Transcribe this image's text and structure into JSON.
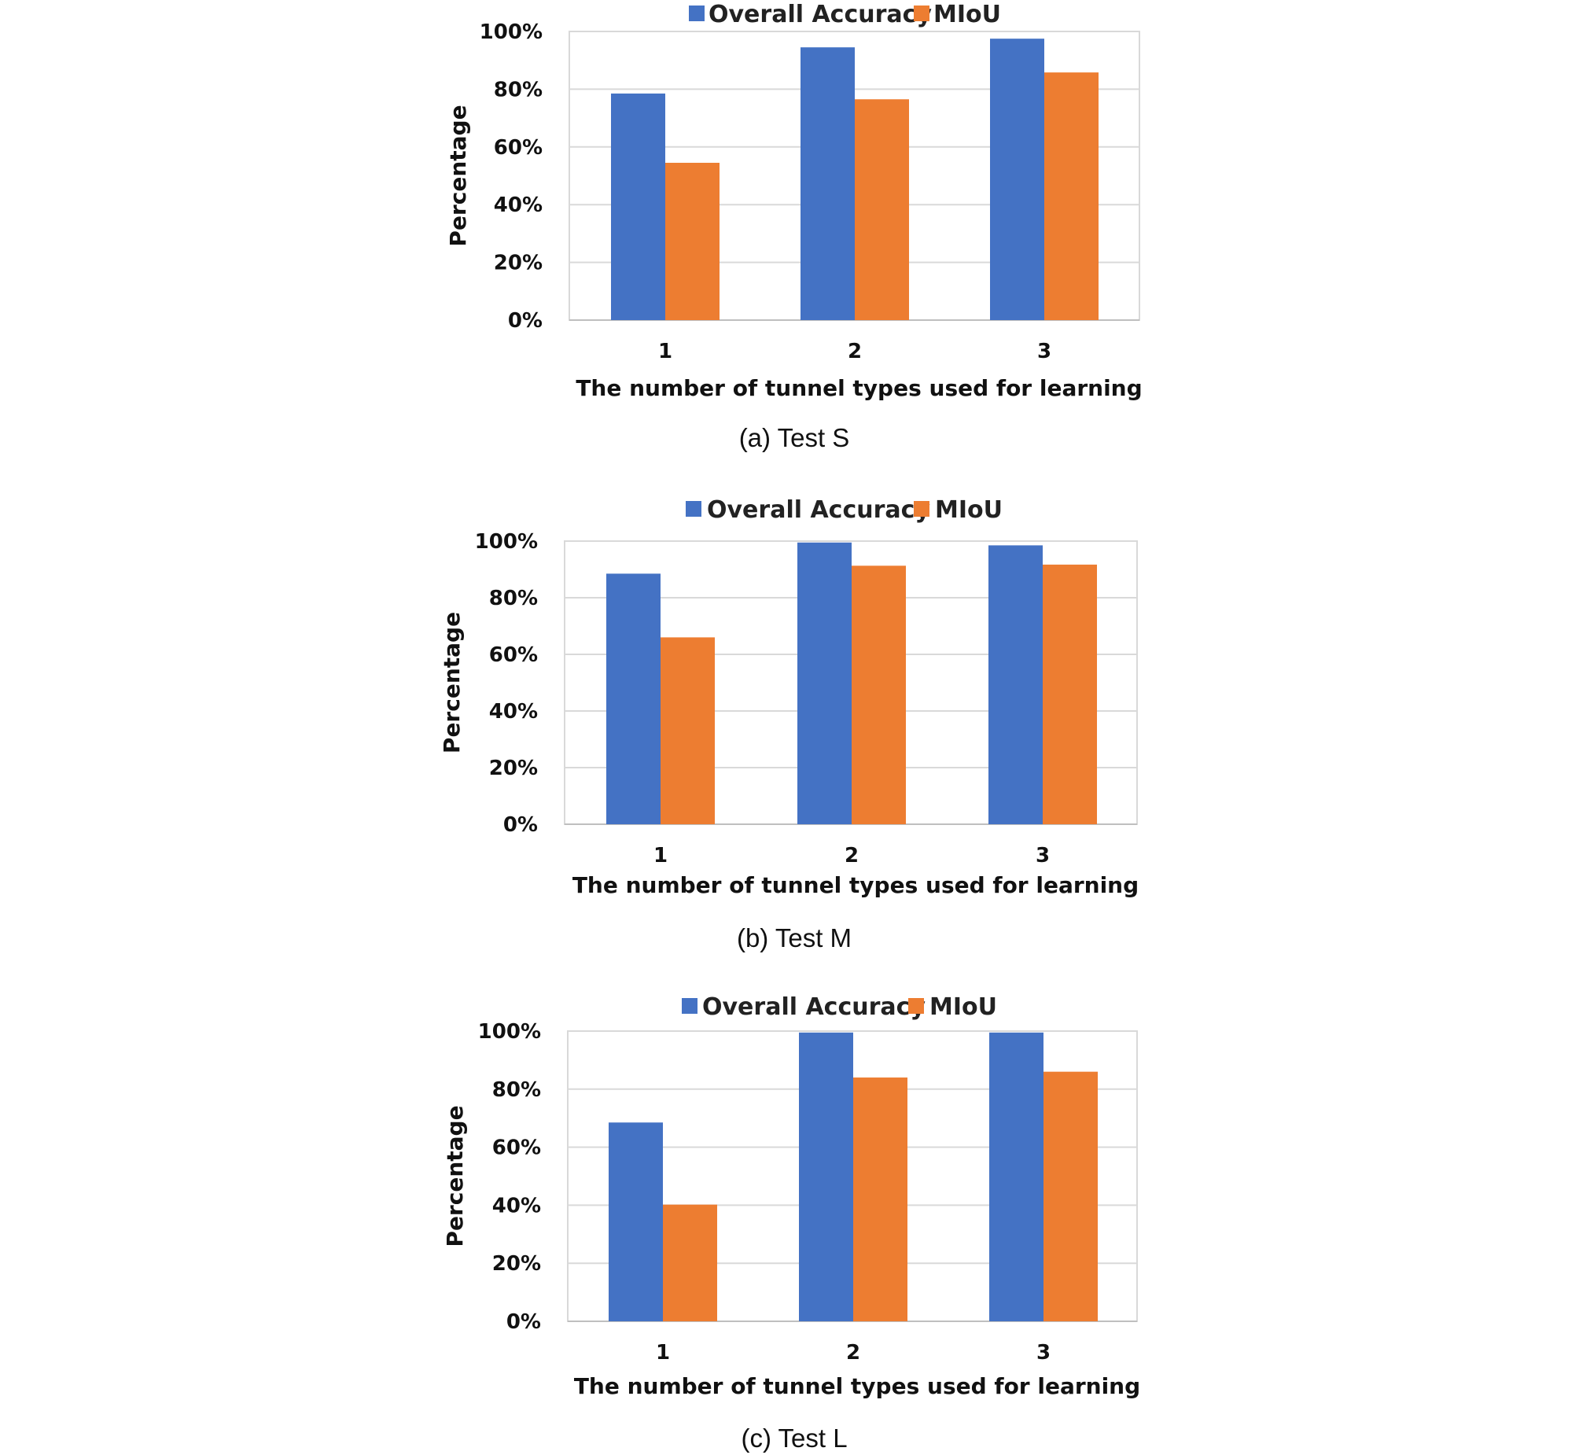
{
  "colors": {
    "overall_accuracy": "#4472C4",
    "miou": "#ED7D31"
  },
  "chart_data": [
    {
      "type": "bar",
      "caption": "(a)  Test  S",
      "categories": [
        "1",
        "2",
        "3"
      ],
      "series": [
        {
          "name": "Overall Accuracy",
          "values": [
            78.5,
            94.5,
            97.5
          ]
        },
        {
          "name": "MIoU",
          "values": [
            54.5,
            76.5,
            85.8
          ]
        }
      ],
      "xlabel": "The number of tunnel types used for learning",
      "ylabel": "Percentage",
      "yticks": [
        "0%",
        "20%",
        "40%",
        "60%",
        "80%",
        "100%"
      ],
      "ylim": [
        0,
        100
      ],
      "grid": true,
      "legend": "top"
    },
    {
      "type": "bar",
      "caption": "(b)  Test  M",
      "categories": [
        "1",
        "2",
        "3"
      ],
      "series": [
        {
          "name": "Overall Accuracy",
          "values": [
            88.5,
            99.5,
            98.5
          ]
        },
        {
          "name": "MIoU",
          "values": [
            66,
            91.3,
            91.7
          ]
        }
      ],
      "xlabel": "The number of tunnel types used for learning",
      "ylabel": "Percentage",
      "yticks": [
        "0%",
        "20%",
        "40%",
        "60%",
        "80%",
        "100%"
      ],
      "ylim": [
        0,
        100
      ],
      "grid": true,
      "legend": "top"
    },
    {
      "type": "bar",
      "caption": "(c)  Test  L",
      "categories": [
        "1",
        "2",
        "3"
      ],
      "series": [
        {
          "name": "Overall Accuracy",
          "values": [
            68.5,
            99.5,
            99.5
          ]
        },
        {
          "name": "MIoU",
          "values": [
            40.2,
            84,
            86
          ]
        }
      ],
      "xlabel": "The number of tunnel types used for learning",
      "ylabel": "Percentage",
      "yticks": [
        "0%",
        "20%",
        "40%",
        "60%",
        "80%",
        "100%"
      ],
      "ylim": [
        0,
        100
      ],
      "grid": true,
      "legend": "top"
    }
  ]
}
